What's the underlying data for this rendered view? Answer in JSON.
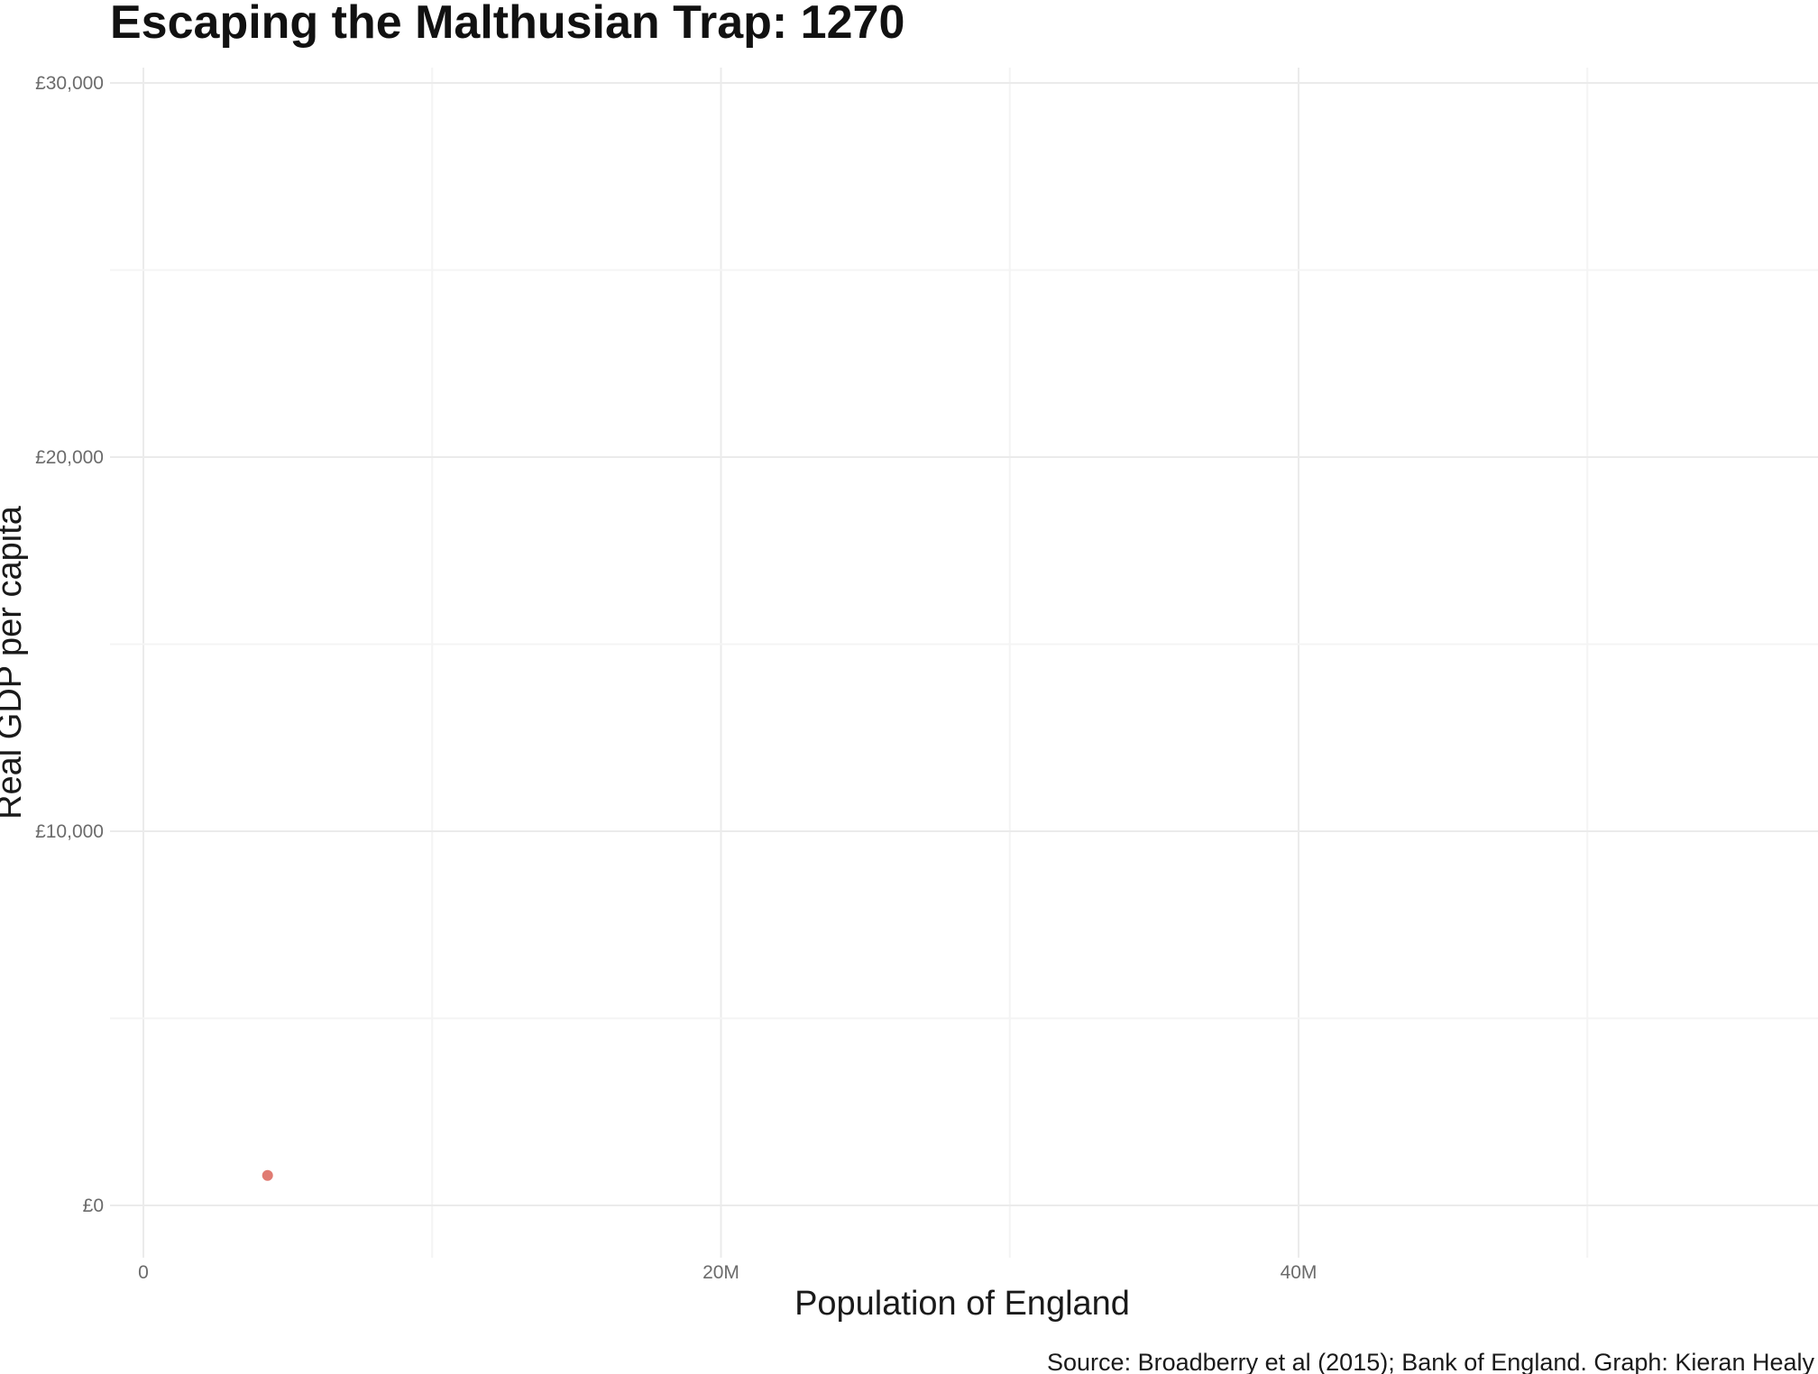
{
  "chart_data": {
    "type": "scatter",
    "title": "Escaping the Malthusian Trap: 1270",
    "xlabel": "Population of England",
    "ylabel": "Real GDP per capita",
    "caption": "Source: Broadberry et al (2015); Bank of England. Graph: Kieran Healy",
    "xlim": [
      -1000000,
      58000000
    ],
    "ylim": [
      -1000000,
      31000
    ],
    "x_ticks": [
      {
        "value": 0,
        "label": "0"
      },
      {
        "value": 20000000,
        "label": "20M"
      },
      {
        "value": 40000000,
        "label": "40M"
      }
    ],
    "x_minor": [
      10000000,
      30000000,
      50000000
    ],
    "y_ticks": [
      {
        "value": 0,
        "label": "£0"
      },
      {
        "value": 10000,
        "label": "£10,000"
      },
      {
        "value": 20000,
        "label": "£20,000"
      },
      {
        "value": 30000,
        "label": "£30,000"
      }
    ],
    "y_minor": [
      5000,
      15000,
      25000
    ],
    "grid": true,
    "point_color": "#e07b72",
    "points": [
      {
        "x": 4300000,
        "y": 800
      }
    ]
  }
}
